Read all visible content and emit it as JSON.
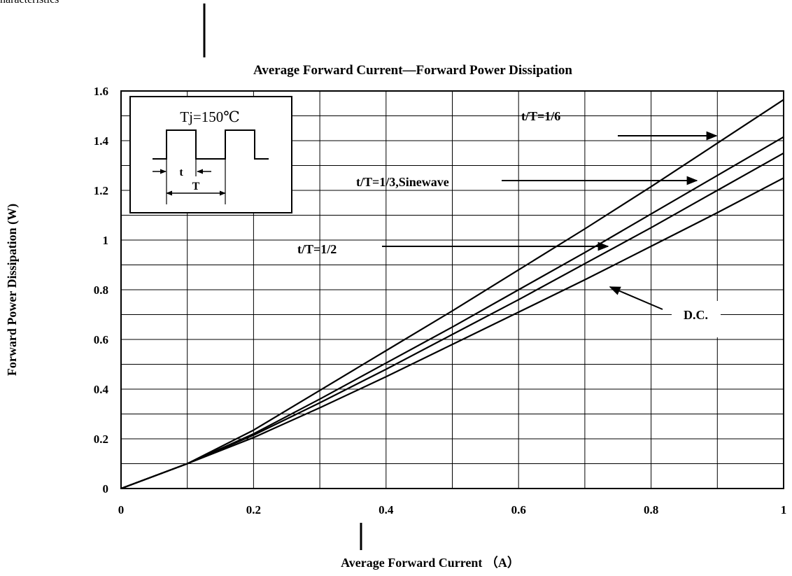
{
  "page_heading": "haracteristics",
  "chart_data": {
    "type": "line",
    "title": "Average Forward Current—Forward Power Dissipation",
    "xlabel": "Average Forward Current （A）",
    "ylabel": "Forward Power Dissipation (W)",
    "xlim": [
      0,
      1
    ],
    "ylim": [
      0,
      1.6
    ],
    "x_ticks": [
      "0",
      "0.2",
      "0.4",
      "0.6",
      "0.8",
      "1"
    ],
    "y_ticks": [
      "0",
      "0.2",
      "0.4",
      "0.6",
      "0.8",
      "1",
      "1.2",
      "1.4",
      "1.6"
    ],
    "grid": true,
    "inset": {
      "label": "Tj=150℃",
      "t_label": "t",
      "T_label": "T"
    },
    "series": [
      {
        "name": "t/T=1/6",
        "x": [
          0,
          0.1,
          0.2,
          0.3,
          0.4,
          0.5,
          0.6,
          0.7,
          0.8,
          0.9,
          1.0
        ],
        "y": [
          0,
          0.1,
          0.235,
          0.395,
          0.555,
          0.715,
          0.88,
          1.045,
          1.215,
          1.39,
          1.565
        ]
      },
      {
        "name": "t/T=1/3,Sinewave",
        "x": [
          0,
          0.1,
          0.2,
          0.3,
          0.4,
          0.5,
          0.6,
          0.7,
          0.8,
          0.9,
          1.0
        ],
        "y": [
          0,
          0.1,
          0.22,
          0.36,
          0.505,
          0.65,
          0.8,
          0.95,
          1.105,
          1.26,
          1.415
        ]
      },
      {
        "name": "t/T=1/2",
        "x": [
          0,
          0.1,
          0.2,
          0.3,
          0.4,
          0.5,
          0.6,
          0.7,
          0.8,
          0.9,
          1.0
        ],
        "y": [
          0,
          0.1,
          0.215,
          0.345,
          0.48,
          0.62,
          0.76,
          0.905,
          1.05,
          1.2,
          1.35
        ]
      },
      {
        "name": "D.C.",
        "x": [
          0,
          0.1,
          0.2,
          0.3,
          0.4,
          0.5,
          0.6,
          0.7,
          0.8,
          0.9,
          1.0
        ],
        "y": [
          0,
          0.1,
          0.205,
          0.325,
          0.45,
          0.58,
          0.71,
          0.84,
          0.975,
          1.11,
          1.25
        ]
      }
    ]
  }
}
